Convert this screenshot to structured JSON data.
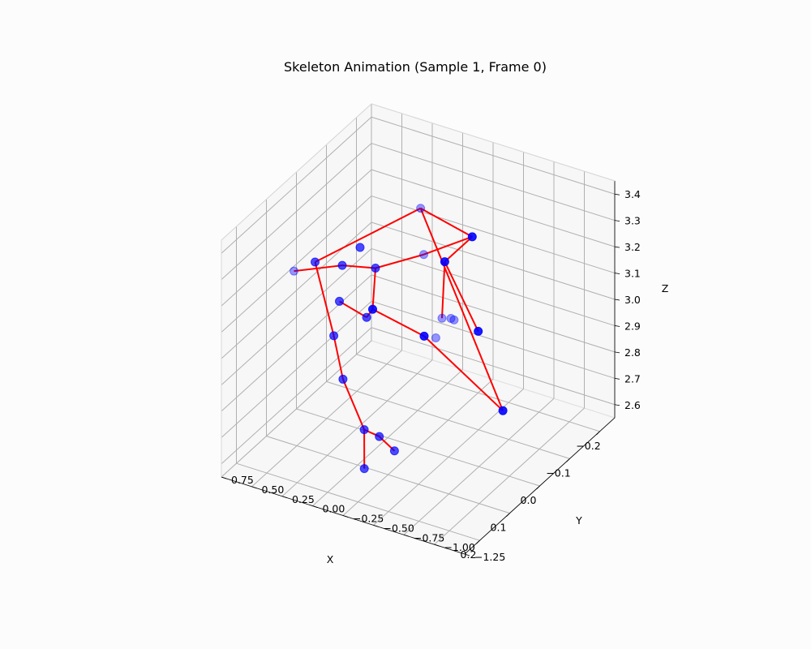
{
  "chart_data": {
    "type": "scatter",
    "title": "Skeleton Animation (Sample 1, Frame 0)",
    "xlabel": "X",
    "ylabel": "Y",
    "zlabel": "Z",
    "grid": true,
    "x_ticks": [
      "−0.2",
      "−0.1",
      "0.0",
      "0.1",
      "0.2"
    ],
    "y_ticks": [
      "−1.25",
      "−1.00",
      "−0.75",
      "−0.50",
      "−0.25",
      "0.00",
      "0.25",
      "0.50",
      "0.75"
    ],
    "z_ticks": [
      "2.6",
      "2.7",
      "2.8",
      "2.9",
      "3.0",
      "3.1",
      "3.2",
      "3.3",
      "3.4"
    ],
    "xlim": [
      -0.25,
      0.25
    ],
    "ylim": [
      -1.25,
      0.75
    ],
    "zlim": [
      2.55,
      3.45
    ],
    "colors": {
      "joints": "#0000ff",
      "bones": "#ff0000"
    },
    "joints": [
      {
        "x": -0.14,
        "y": -0.35,
        "z": 3.22,
        "depth": 0.9
      },
      {
        "x": -0.13,
        "y": 0.05,
        "z": 3.28,
        "depth": 0.4
      },
      {
        "x": -0.17,
        "y": -0.05,
        "z": 3.05,
        "depth": 0.9
      },
      {
        "x": -0.08,
        "y": -0.75,
        "z": 2.68,
        "depth": 0.9
      },
      {
        "x": -0.1,
        "y": -0.2,
        "z": 2.93,
        "depth": 0.4
      },
      {
        "x": -0.12,
        "y": -0.25,
        "z": 2.91,
        "depth": 0.4
      },
      {
        "x": -0.15,
        "y": -0.15,
        "z": 2.87,
        "depth": 0.4
      },
      {
        "x": -0.12,
        "y": -0.1,
        "z": 2.82,
        "depth": 0.4
      },
      {
        "x": -0.16,
        "y": -0.35,
        "z": 2.84,
        "depth": 0.9
      },
      {
        "x": -0.1,
        "y": -0.05,
        "z": 3.15,
        "depth": 0.4
      },
      {
        "x": 0.05,
        "y": 0.25,
        "z": 3.22,
        "depth": 0.7
      },
      {
        "x": 0.1,
        "y": 0.15,
        "z": 3.15,
        "depth": 0.7
      },
      {
        "x": 0.1,
        "y": 0.35,
        "z": 3.27,
        "depth": 0.7
      },
      {
        "x": 0.15,
        "y": 0.4,
        "z": 3.28,
        "depth": 0.4
      },
      {
        "x": 0.0,
        "y": 0.1,
        "z": 3.18,
        "depth": 0.7
      },
      {
        "x": -0.05,
        "y": 0.35,
        "z": 3.17,
        "depth": 0.7
      },
      {
        "x": 0.05,
        "y": 0.0,
        "z": 3.09,
        "depth": 0.9
      },
      {
        "x": 0.07,
        "y": 0.0,
        "z": 3.08,
        "depth": 0.7
      },
      {
        "x": 0.0,
        "y": -0.3,
        "z": 2.98,
        "depth": 0.9
      },
      {
        "x": 0.22,
        "y": -0.1,
        "z": 3.18,
        "depth": 0.7
      },
      {
        "x": 0.23,
        "y": -0.2,
        "z": 3.04,
        "depth": 0.7
      },
      {
        "x": 0.22,
        "y": -0.35,
        "z": 2.86,
        "depth": 0.7
      },
      {
        "x": 0.19,
        "y": -0.4,
        "z": 2.81,
        "depth": 0.7
      },
      {
        "x": 0.18,
        "y": -0.5,
        "z": 2.76,
        "depth": 0.7
      },
      {
        "x": 0.24,
        "y": -0.4,
        "z": 2.74,
        "depth": 0.7
      }
    ],
    "bones": [
      [
        0,
        1
      ],
      [
        1,
        12
      ],
      [
        12,
        19
      ],
      [
        19,
        20
      ],
      [
        20,
        21
      ],
      [
        21,
        22
      ],
      [
        22,
        23
      ],
      [
        21,
        24
      ],
      [
        1,
        3
      ],
      [
        0,
        2
      ],
      [
        2,
        8
      ],
      [
        2,
        4
      ],
      [
        0,
        9
      ],
      [
        9,
        14
      ],
      [
        14,
        16
      ],
      [
        16,
        17
      ],
      [
        16,
        18
      ],
      [
        18,
        3
      ],
      [
        10,
        13
      ],
      [
        10,
        14
      ],
      [
        11,
        17
      ]
    ]
  }
}
